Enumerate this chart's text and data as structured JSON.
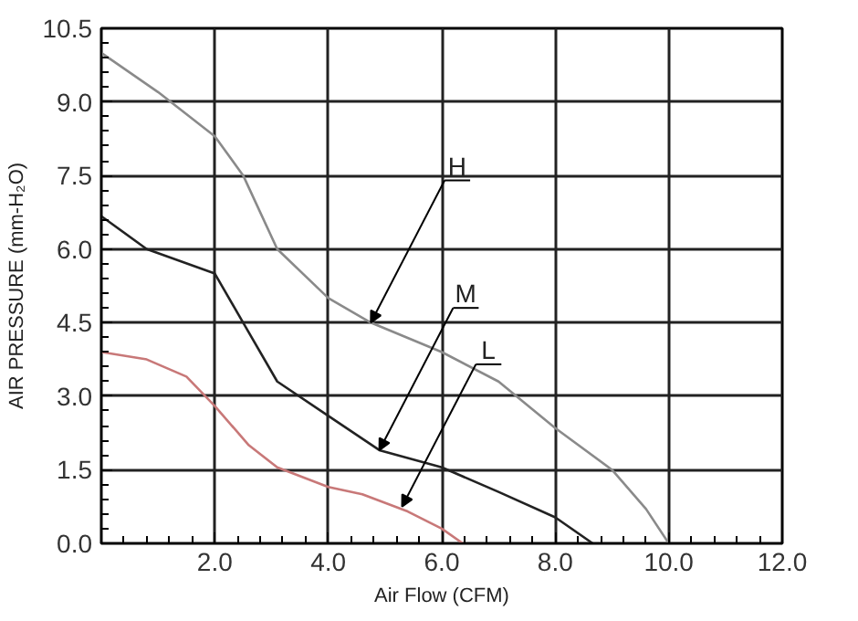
{
  "chart_data": {
    "type": "line",
    "xlabel": "Air Flow (CFM)",
    "ylabel": "AIR PRESSURE (mm-H₂O)",
    "xlim": [
      0,
      12
    ],
    "xticks": [
      {
        "value": 2,
        "label": "2.0"
      },
      {
        "value": 4,
        "label": "4.0"
      },
      {
        "value": 6,
        "label": "6.0"
      },
      {
        "value": 8,
        "label": "8.0"
      },
      {
        "value": 10,
        "label": "10.0"
      },
      {
        "value": 12,
        "label": "12.0"
      }
    ],
    "ylim": [
      0,
      10.5
    ],
    "yticks": [
      {
        "value": 0,
        "label": "0.0"
      },
      {
        "value": 1.5,
        "label": "1.5"
      },
      {
        "value": 3,
        "label": "3.0"
      },
      {
        "value": 4.5,
        "label": "4.5"
      },
      {
        "value": 6,
        "label": "6.0"
      },
      {
        "value": 7.5,
        "label": "7.5"
      },
      {
        "value": 9,
        "label": "9.0"
      },
      {
        "value": 10.5,
        "label": "10.5"
      }
    ],
    "grid": true,
    "marker": "none",
    "line_style": "solid",
    "series": [
      {
        "color": "#8a8a8a",
        "x": [
          0,
          1.0,
          2.0,
          2.5,
          3.1,
          4.0,
          4.75,
          6.0,
          7.0,
          8.0,
          9.0,
          9.6,
          10.0
        ],
        "values": [
          10.0,
          9.2,
          8.3,
          7.5,
          6.0,
          5.0,
          4.5,
          3.9,
          3.3,
          2.35,
          1.5,
          0.7,
          0
        ]
      },
      {
        "color": "#222222",
        "x": [
          0,
          0.8,
          2.0,
          2.5,
          3.1,
          4.0,
          4.9,
          6.0,
          7.0,
          8.0,
          8.66
        ],
        "values": [
          6.67,
          6.0,
          5.5,
          4.5,
          3.3,
          2.6,
          1.9,
          1.55,
          1.05,
          0.53,
          0
        ]
      },
      {
        "color": "#c87878",
        "x": [
          0,
          0.8,
          1.5,
          2.0,
          2.6,
          3.1,
          4.0,
          4.6,
          5.4,
          6.0,
          6.37
        ],
        "values": [
          3.9,
          3.75,
          3.4,
          2.8,
          2.0,
          1.55,
          1.15,
          1.0,
          0.65,
          0.3,
          0
        ]
      }
    ],
    "annotations": [
      {
        "text": "H",
        "x": 4.75,
        "y": 4.5
      },
      {
        "text": "M",
        "x": 4.9,
        "y": 1.9
      },
      {
        "text": "L",
        "x": 5.3,
        "y": 0.75
      }
    ]
  }
}
